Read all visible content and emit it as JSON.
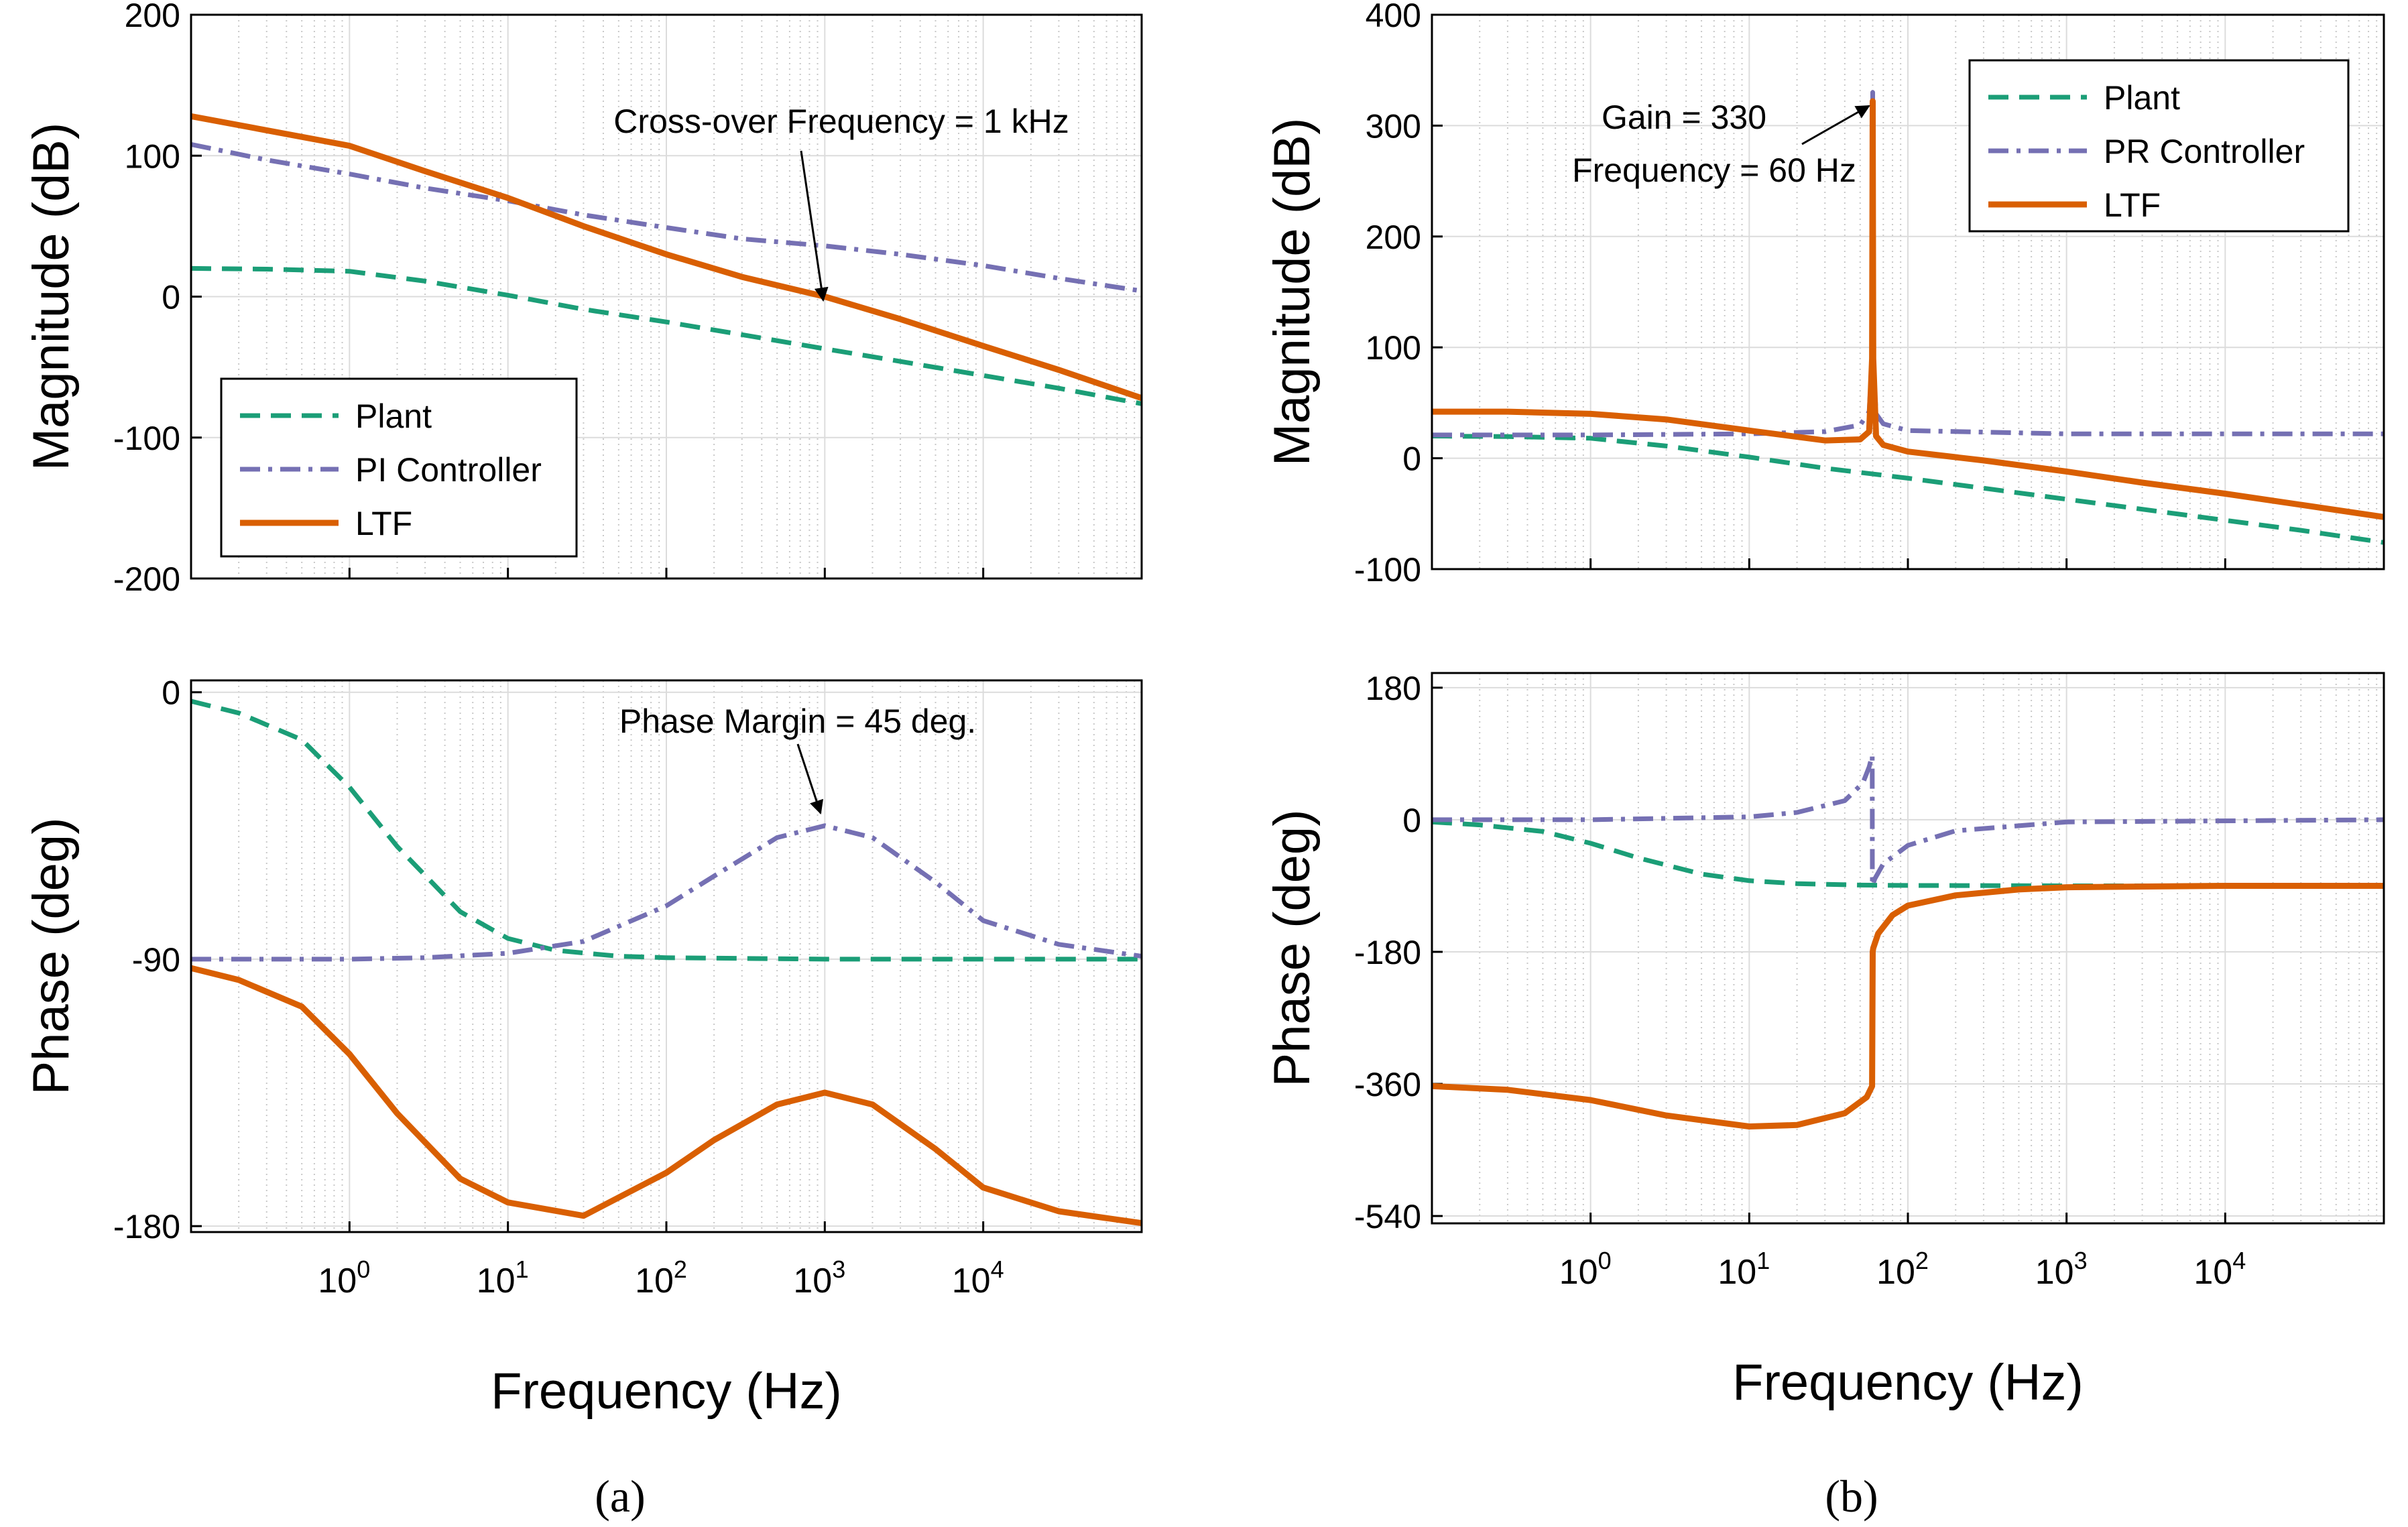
{
  "figure": {
    "panel_labels": [
      "(a)",
      "(b)"
    ],
    "x_tick_labels": [
      {
        "base": "10",
        "exp": "0"
      },
      {
        "base": "10",
        "exp": "1"
      },
      {
        "base": "10",
        "exp": "2"
      },
      {
        "base": "10",
        "exp": "3"
      },
      {
        "base": "10",
        "exp": "4"
      }
    ],
    "colors": {
      "plant": "#1b9e77",
      "controller": "#7570b3",
      "ltf": "#d95f02"
    }
  },
  "chart_data": [
    {
      "id": "a_mag",
      "type": "line",
      "panel": "(a)",
      "ylabel": "Magnitude (dB)",
      "xlabel": "",
      "xscale": "log",
      "xlim": [
        0.1,
        100000
      ],
      "ylim": [
        -200,
        200
      ],
      "yticks": [
        -200,
        -100,
        0,
        100,
        200
      ],
      "legend": {
        "position": "bottom-left",
        "entries": [
          "Plant",
          "PI Controller",
          "LTF"
        ]
      },
      "annotations": [
        {
          "text": "Cross-over Frequency = 1 kHz",
          "x": 1000,
          "y": 0
        }
      ],
      "series": [
        {
          "name": "Plant",
          "style": "dashed",
          "x": [
            0.1,
            0.3,
            1,
            3,
            10,
            30,
            100,
            300,
            1000,
            3000,
            10000,
            30000,
            100000
          ],
          "y": [
            20,
            19.5,
            18,
            11,
            1,
            -9,
            -18,
            -27,
            -37,
            -46,
            -56,
            -65,
            -76
          ]
        },
        {
          "name": "PI Controller",
          "style": "dashdot",
          "x": [
            0.1,
            0.3,
            1,
            3,
            10,
            30,
            100,
            300,
            1000,
            3000,
            10000,
            30000,
            100000
          ],
          "y": [
            108,
            97,
            87,
            77,
            68,
            58,
            49,
            41,
            36,
            30,
            22,
            13,
            4
          ]
        },
        {
          "name": "LTF",
          "style": "solid",
          "x": [
            0.1,
            0.3,
            1,
            3,
            10,
            30,
            100,
            300,
            1000,
            3000,
            10000,
            30000,
            100000
          ],
          "y": [
            128,
            118,
            107,
            89,
            70,
            50,
            30,
            14,
            0,
            -16,
            -35,
            -52,
            -72
          ]
        }
      ]
    },
    {
      "id": "a_phase",
      "type": "line",
      "panel": "(a)",
      "ylabel": "Phase (deg)",
      "xlabel": "Frequency (Hz)",
      "xscale": "log",
      "xlim": [
        0.1,
        100000
      ],
      "ylim": [
        -182,
        4
      ],
      "yticks": [
        -180,
        -90,
        0
      ],
      "annotations": [
        {
          "text": "Phase Margin = 45 deg.",
          "x": 1000,
          "y": -45
        }
      ],
      "series": [
        {
          "name": "Plant",
          "style": "dashed",
          "x": [
            0.1,
            0.2,
            0.5,
            1,
            2,
            5,
            10,
            20,
            50,
            100,
            1000,
            100000
          ],
          "y": [
            -3,
            -7,
            -16,
            -32,
            -52,
            -74,
            -83,
            -87,
            -89,
            -89.5,
            -90,
            -90
          ]
        },
        {
          "name": "PI Controller",
          "style": "dashdot",
          "x": [
            0.1,
            1,
            3,
            10,
            30,
            100,
            200,
            500,
            1000,
            2000,
            5000,
            10000,
            30000,
            100000
          ],
          "y": [
            -90,
            -90,
            -89.5,
            -88,
            -84,
            -72,
            -62,
            -49,
            -45,
            -49,
            -64,
            -77,
            -85,
            -89
          ]
        },
        {
          "name": "LTF",
          "style": "solid",
          "x": [
            0.1,
            0.2,
            0.5,
            1,
            2,
            5,
            10,
            30,
            100,
            200,
            500,
            1000,
            2000,
            5000,
            10000,
            30000,
            100000
          ],
          "y": [
            -93,
            -97,
            -106,
            -122,
            -142,
            -164,
            -172,
            -176.5,
            -162,
            -151,
            -139,
            -135,
            -139,
            -154,
            -167,
            -175,
            -179
          ]
        }
      ]
    },
    {
      "id": "b_mag",
      "type": "line",
      "panel": "(b)",
      "ylabel": "Magnitude (dB)",
      "xlabel": "",
      "xscale": "log",
      "xlim": [
        0.1,
        100000
      ],
      "ylim": [
        -100,
        400
      ],
      "yticks": [
        -100,
        0,
        100,
        200,
        300,
        400
      ],
      "legend": {
        "position": "top-right",
        "entries": [
          "Plant",
          "PR Controller",
          "LTF"
        ]
      },
      "annotations": [
        {
          "text": "Gain = 330",
          "x": 60,
          "y": 330
        },
        {
          "text": "Frequency = 60 Hz",
          "x": 60,
          "y": 330
        }
      ],
      "series": [
        {
          "name": "Plant",
          "style": "dashed",
          "x": [
            0.1,
            0.3,
            1,
            3,
            10,
            30,
            100,
            300,
            1000,
            3000,
            10000,
            30000,
            100000
          ],
          "y": [
            20,
            19.5,
            18,
            11,
            1,
            -9,
            -18,
            -27,
            -37,
            -46,
            -56,
            -65,
            -76
          ]
        },
        {
          "name": "PR Controller",
          "style": "dashdot",
          "x": [
            0.1,
            1,
            10,
            30,
            50,
            57,
            59.5,
            60,
            60.5,
            63,
            70,
            100,
            1000,
            100000
          ],
          "y": [
            21,
            21,
            22,
            24,
            30,
            42,
            90,
            330,
            90,
            40,
            31,
            25,
            22,
            22
          ]
        },
        {
          "name": "LTF",
          "style": "solid",
          "x": [
            0.1,
            0.3,
            1,
            3,
            10,
            30,
            50,
            57,
            59.5,
            60,
            60.5,
            63,
            70,
            100,
            300,
            1000,
            3000,
            10000,
            30000,
            100000
          ],
          "y": [
            42,
            42,
            40,
            35,
            25,
            16,
            17,
            24,
            90,
            322,
            90,
            20,
            12,
            6,
            -2,
            -12,
            -22,
            -32,
            -42,
            -53
          ]
        }
      ]
    },
    {
      "id": "b_phase",
      "type": "line",
      "panel": "(b)",
      "ylabel": "Phase (deg)",
      "xlabel": "Frequency (Hz)",
      "xscale": "log",
      "xlim": [
        0.1,
        100000
      ],
      "ylim": [
        -550,
        200
      ],
      "yticks": [
        -540,
        -360,
        -180,
        0,
        180
      ],
      "series": [
        {
          "name": "Plant",
          "style": "dashed",
          "x": [
            0.1,
            0.2,
            0.5,
            1,
            2,
            5,
            10,
            20,
            50,
            100,
            1000,
            100000
          ],
          "y": [
            -3,
            -7,
            -16,
            -32,
            -52,
            -74,
            -83,
            -87,
            -89,
            -89.5,
            -90,
            -90
          ]
        },
        {
          "name": "PR Controller",
          "style": "dashdot",
          "x": [
            0.1,
            1,
            10,
            20,
            40,
            52,
            57,
            59.6,
            59.7,
            62,
            70,
            100,
            200,
            1000,
            100000
          ],
          "y": [
            0,
            0,
            4,
            10,
            26,
            50,
            72,
            88,
            -90,
            -80,
            -60,
            -35,
            -15,
            -3,
            0
          ]
        },
        {
          "name": "LTF",
          "style": "solid",
          "x": [
            0.1,
            0.3,
            1,
            3,
            10,
            20,
            40,
            55,
            59.5,
            60,
            60.5,
            65,
            80,
            100,
            200,
            500,
            1000,
            10000,
            100000
          ],
          "y": [
            -363,
            -368,
            -382,
            -403,
            -418,
            -416,
            -400,
            -378,
            -363,
            -180,
            -175,
            -155,
            -130,
            -117,
            -103,
            -95,
            -92,
            -90,
            -90
          ]
        }
      ]
    }
  ]
}
